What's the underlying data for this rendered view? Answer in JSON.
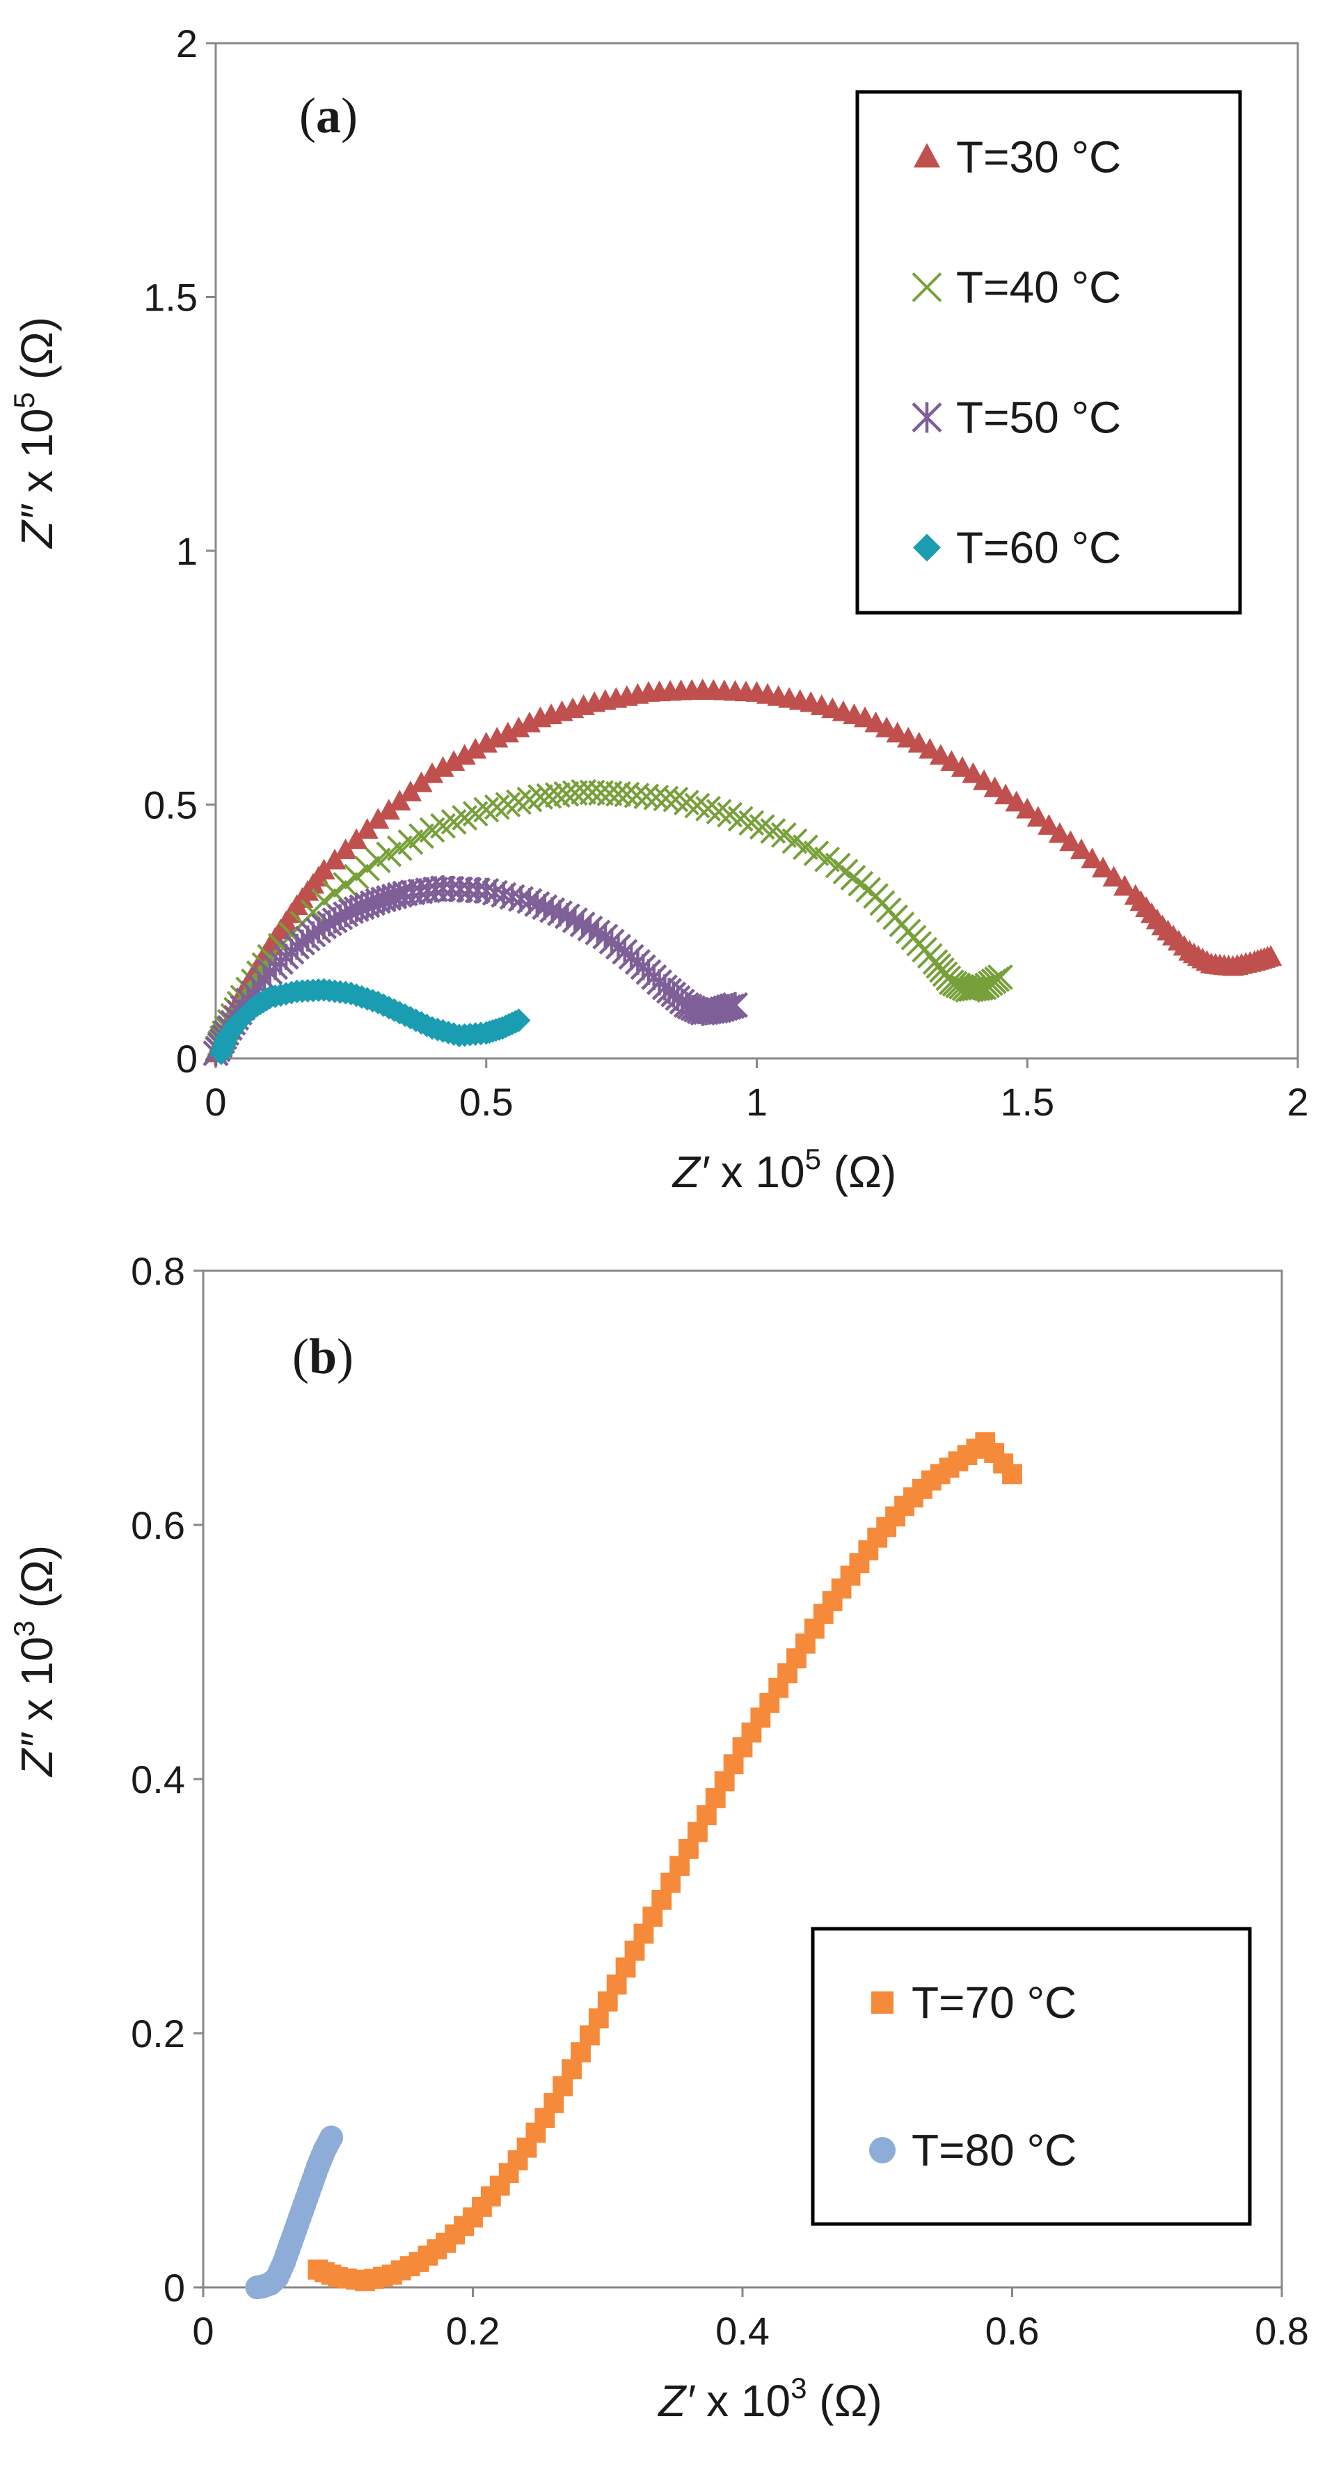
{
  "chart_data": [
    {
      "type": "scatter",
      "panel_label": "a",
      "xlabel_var": "Z′",
      "xlabel_rest": " x 10",
      "xlabel_exp": "5",
      "xlabel_unit": " (Ω)",
      "ylabel_var": "Z″",
      "ylabel_rest": " x 10",
      "ylabel_exp": "5",
      "ylabel_unit": " (Ω)",
      "xlim": [
        0,
        2
      ],
      "ylim": [
        0,
        2
      ],
      "xticks": [
        0,
        0.5,
        1,
        1.5,
        2
      ],
      "yticks": [
        0,
        0.5,
        1,
        1.5,
        2
      ],
      "xtick_labels": [
        "0",
        "0.5",
        "1",
        "1.5",
        "2"
      ],
      "ytick_labels": [
        "0",
        "0.5",
        "1",
        "1.5",
        "2"
      ],
      "legend_position": "top-right",
      "series": [
        {
          "name": "T=30 °C",
          "marker": "triangle",
          "color": "#c0504d",
          "points": [
            [
              0,
              0.01
            ],
            [
              0.02,
              0.06
            ],
            [
              0.05,
              0.13
            ],
            [
              0.1,
              0.22
            ],
            [
              0.15,
              0.3
            ],
            [
              0.2,
              0.37
            ],
            [
              0.3,
              0.47
            ],
            [
              0.4,
              0.56
            ],
            [
              0.5,
              0.62
            ],
            [
              0.6,
              0.67
            ],
            [
              0.7,
              0.7
            ],
            [
              0.8,
              0.72
            ],
            [
              0.9,
              0.725
            ],
            [
              1.0,
              0.72
            ],
            [
              1.1,
              0.7
            ],
            [
              1.2,
              0.67
            ],
            [
              1.3,
              0.62
            ],
            [
              1.4,
              0.56
            ],
            [
              1.5,
              0.49
            ],
            [
              1.6,
              0.41
            ],
            [
              1.7,
              0.32
            ],
            [
              1.75,
              0.26
            ],
            [
              1.8,
              0.21
            ],
            [
              1.84,
              0.185
            ],
            [
              1.88,
              0.18
            ],
            [
              1.92,
              0.19
            ],
            [
              1.95,
              0.2
            ]
          ]
        },
        {
          "name": "T=40 °C",
          "marker": "x",
          "color": "#77a03a",
          "points": [
            [
              0,
              0.01
            ],
            [
              0.02,
              0.06
            ],
            [
              0.05,
              0.12
            ],
            [
              0.1,
              0.2
            ],
            [
              0.2,
              0.31
            ],
            [
              0.3,
              0.39
            ],
            [
              0.4,
              0.45
            ],
            [
              0.5,
              0.49
            ],
            [
              0.6,
              0.515
            ],
            [
              0.68,
              0.525
            ],
            [
              0.76,
              0.52
            ],
            [
              0.85,
              0.51
            ],
            [
              0.95,
              0.48
            ],
            [
              1.05,
              0.44
            ],
            [
              1.15,
              0.38
            ],
            [
              1.22,
              0.32
            ],
            [
              1.28,
              0.25
            ],
            [
              1.33,
              0.19
            ],
            [
              1.36,
              0.15
            ],
            [
              1.39,
              0.135
            ],
            [
              1.42,
              0.14
            ],
            [
              1.45,
              0.16
            ]
          ]
        },
        {
          "name": "T=50 °C",
          "marker": "asterisk",
          "color": "#7f5f97",
          "points": [
            [
              0,
              0.01
            ],
            [
              0.02,
              0.05
            ],
            [
              0.05,
              0.1
            ],
            [
              0.1,
              0.17
            ],
            [
              0.15,
              0.22
            ],
            [
              0.2,
              0.26
            ],
            [
              0.25,
              0.29
            ],
            [
              0.3,
              0.31
            ],
            [
              0.35,
              0.325
            ],
            [
              0.42,
              0.335
            ],
            [
              0.5,
              0.33
            ],
            [
              0.58,
              0.31
            ],
            [
              0.65,
              0.28
            ],
            [
              0.72,
              0.24
            ],
            [
              0.78,
              0.19
            ],
            [
              0.83,
              0.14
            ],
            [
              0.87,
              0.105
            ],
            [
              0.9,
              0.09
            ],
            [
              0.93,
              0.095
            ],
            [
              0.96,
              0.105
            ]
          ]
        },
        {
          "name": "T=60 °C",
          "marker": "diamond",
          "color": "#1a9db0",
          "points": [
            [
              0.01,
              0.01
            ],
            [
              0.02,
              0.04
            ],
            [
              0.04,
              0.07
            ],
            [
              0.07,
              0.1
            ],
            [
              0.1,
              0.12
            ],
            [
              0.15,
              0.132
            ],
            [
              0.2,
              0.135
            ],
            [
              0.25,
              0.128
            ],
            [
              0.3,
              0.11
            ],
            [
              0.35,
              0.085
            ],
            [
              0.4,
              0.06
            ],
            [
              0.45,
              0.045
            ],
            [
              0.5,
              0.05
            ],
            [
              0.53,
              0.06
            ],
            [
              0.56,
              0.075
            ]
          ]
        }
      ]
    },
    {
      "type": "scatter",
      "panel_label": "b",
      "xlabel_var": "Z′",
      "xlabel_rest": " x 10",
      "xlabel_exp": "3",
      "xlabel_unit": " (Ω)",
      "ylabel_var": "Z″",
      "ylabel_rest": " x 10",
      "ylabel_exp": "3",
      "ylabel_unit": " (Ω)",
      "xlim": [
        0,
        0.8
      ],
      "ylim": [
        0,
        0.8
      ],
      "xticks": [
        0,
        0.2,
        0.4,
        0.6,
        0.8
      ],
      "yticks": [
        0,
        0.2,
        0.4,
        0.6,
        0.8
      ],
      "xtick_labels": [
        "0",
        "0.2",
        "0.4",
        "0.6",
        "0.8"
      ],
      "ytick_labels": [
        "0",
        "0.2",
        "0.4",
        "0.6",
        "0.8"
      ],
      "legend_position": "bottom-right",
      "series": [
        {
          "name": "T=70 °C",
          "marker": "square",
          "color": "#f58a3a",
          "points": [
            [
              0.085,
              0.014
            ],
            [
              0.1,
              0.008
            ],
            [
              0.12,
              0.005
            ],
            [
              0.14,
              0.01
            ],
            [
              0.16,
              0.02
            ],
            [
              0.18,
              0.035
            ],
            [
              0.2,
              0.055
            ],
            [
              0.22,
              0.08
            ],
            [
              0.24,
              0.11
            ],
            [
              0.26,
              0.145
            ],
            [
              0.28,
              0.185
            ],
            [
              0.3,
              0.225
            ],
            [
              0.32,
              0.265
            ],
            [
              0.34,
              0.305
            ],
            [
              0.36,
              0.345
            ],
            [
              0.38,
              0.385
            ],
            [
              0.4,
              0.425
            ],
            [
              0.42,
              0.46
            ],
            [
              0.44,
              0.495
            ],
            [
              0.46,
              0.53
            ],
            [
              0.48,
              0.56
            ],
            [
              0.5,
              0.59
            ],
            [
              0.52,
              0.615
            ],
            [
              0.54,
              0.635
            ],
            [
              0.56,
              0.65
            ],
            [
              0.58,
              0.665
            ],
            [
              0.6,
              0.64
            ]
          ]
        },
        {
          "name": "T=80 °C",
          "marker": "circle",
          "color": "#8eacd8",
          "points": [
            [
              0.04,
              0.0
            ],
            [
              0.045,
              0.001
            ],
            [
              0.05,
              0.003
            ],
            [
              0.055,
              0.008
            ],
            [
              0.06,
              0.02
            ],
            [
              0.065,
              0.035
            ],
            [
              0.07,
              0.05
            ],
            [
              0.075,
              0.065
            ],
            [
              0.08,
              0.08
            ],
            [
              0.085,
              0.095
            ],
            [
              0.09,
              0.108
            ],
            [
              0.095,
              0.118
            ]
          ]
        }
      ]
    }
  ]
}
